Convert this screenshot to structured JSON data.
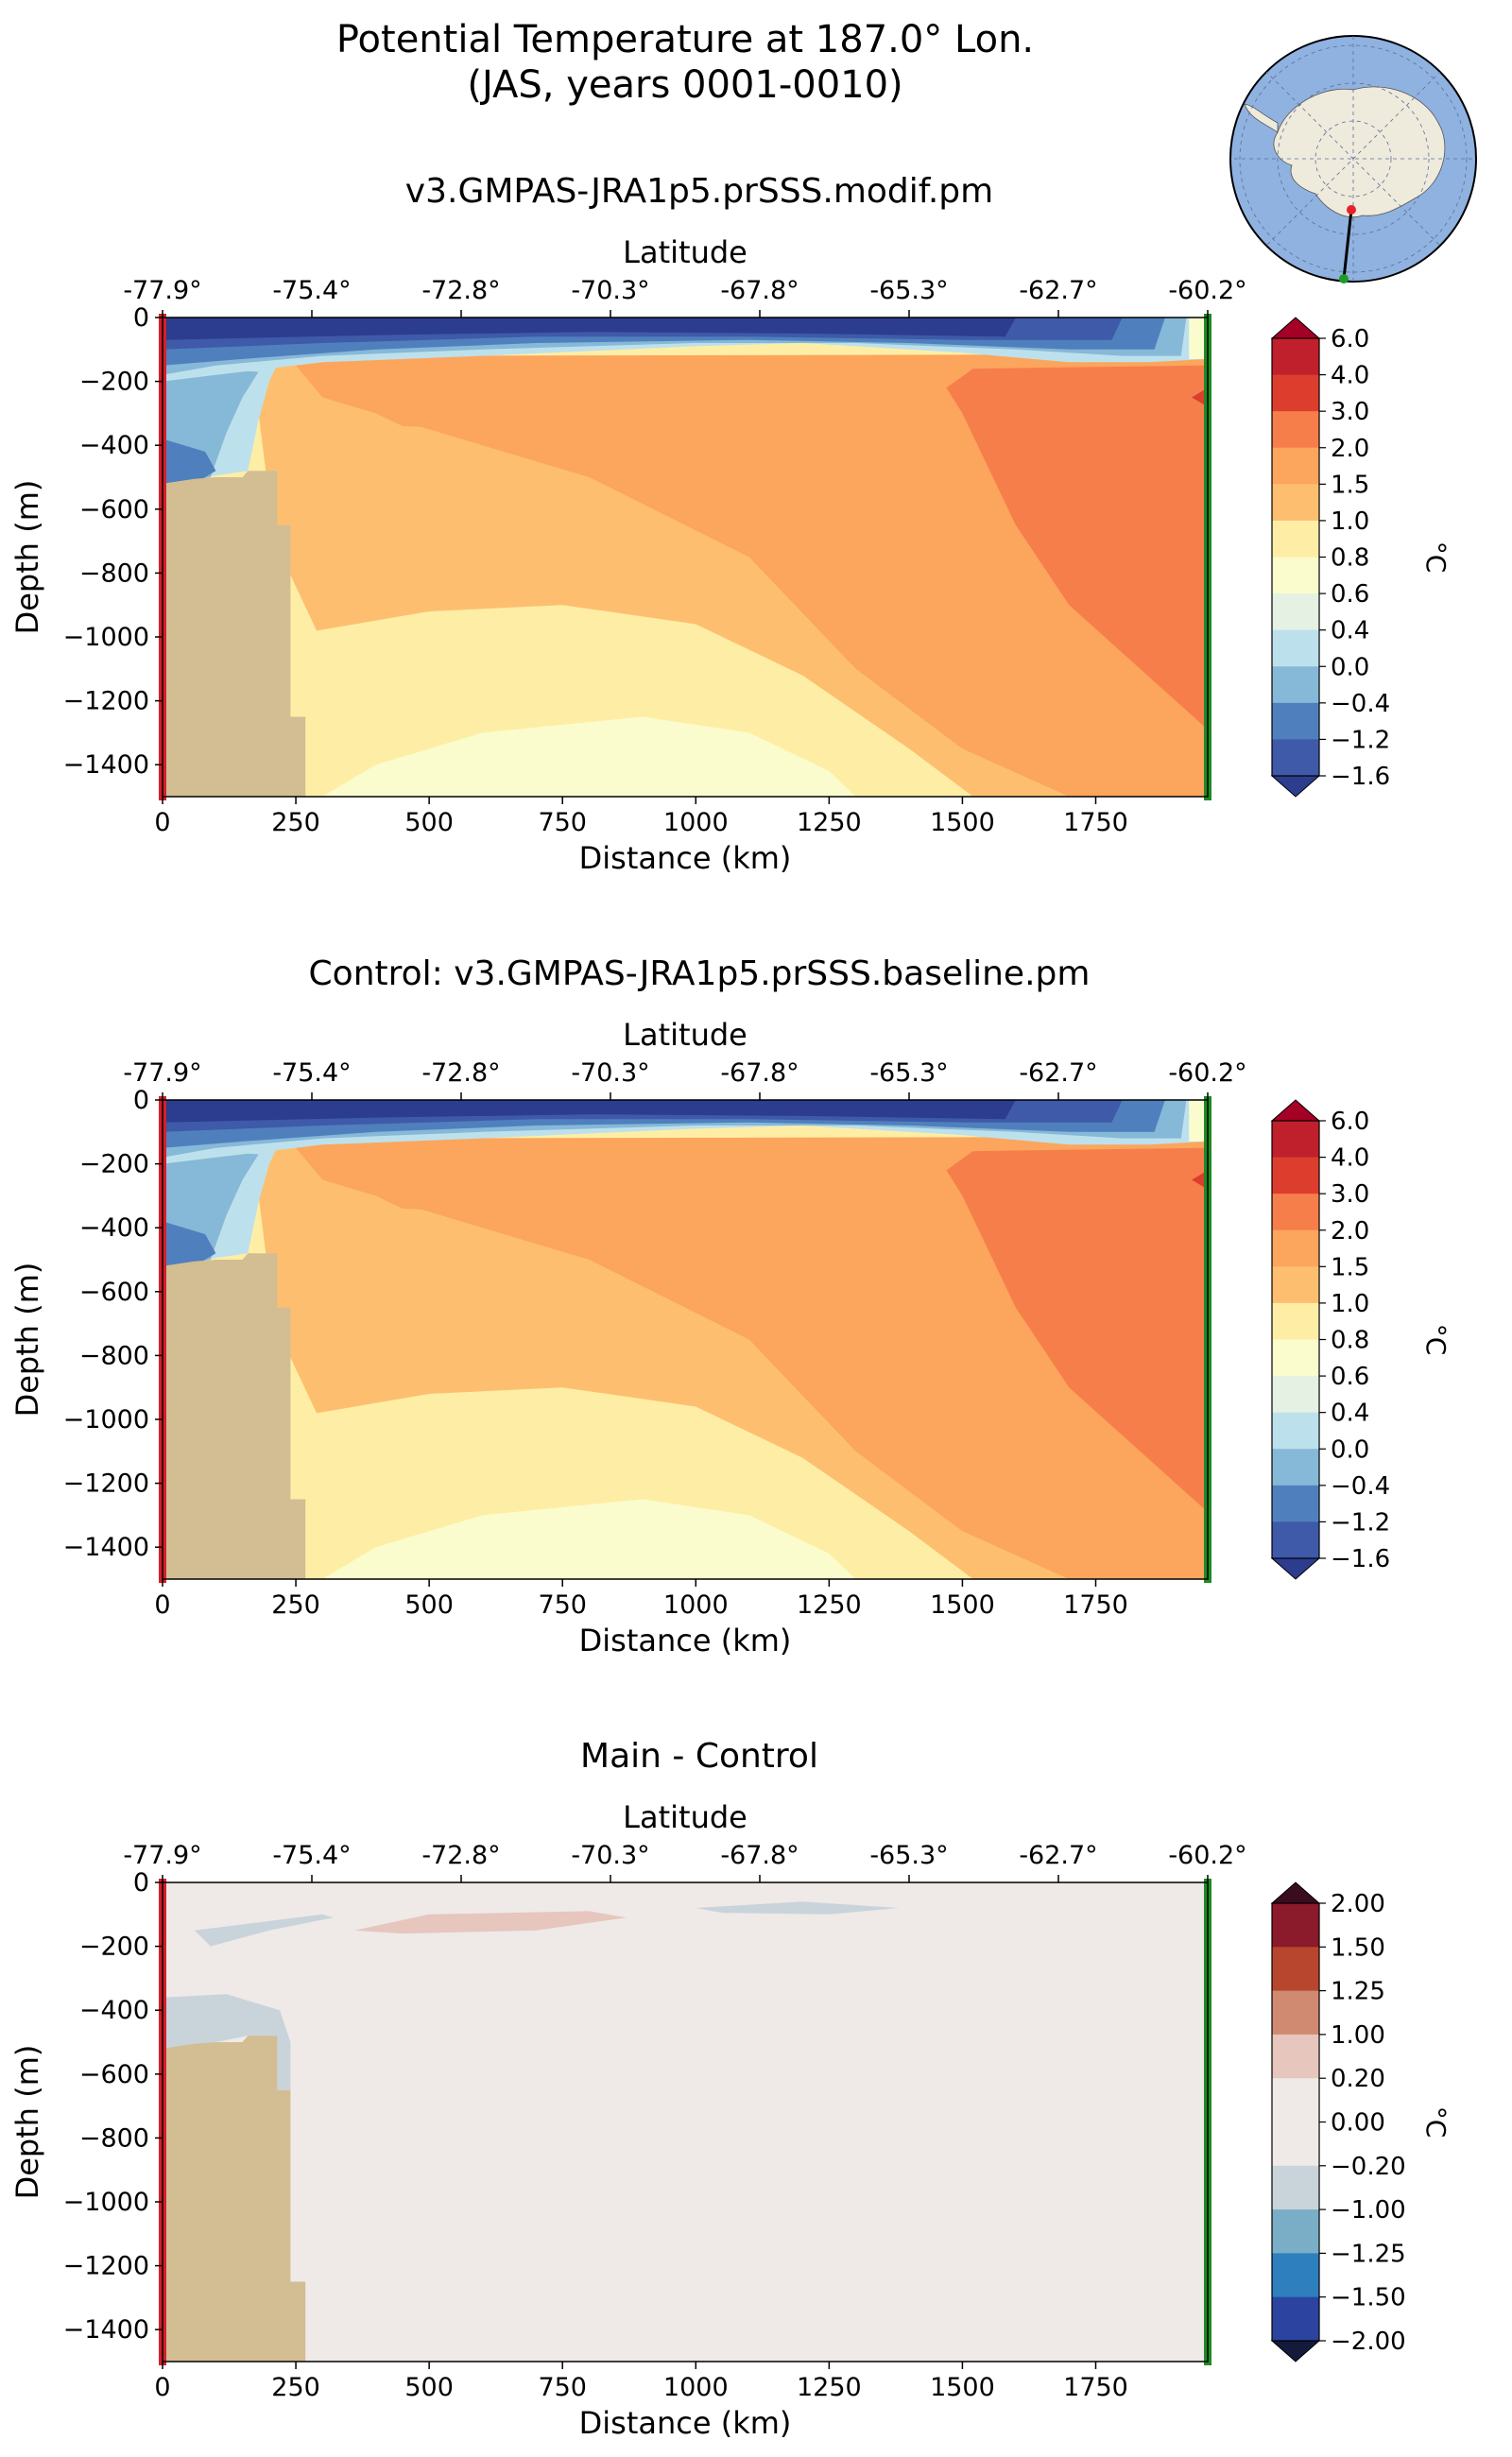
{
  "figure": {
    "title_line1": "Potential Temperature at 187.0° Lon.",
    "title_line2": "(JAS, years 0001-0010)"
  },
  "inset_map": {
    "description_icon": "antarctica-polar-map",
    "track_start_color": "#e8202a",
    "track_end_color": "#1f9a2a"
  },
  "chart_data": [
    {
      "type": "contourf",
      "title": "v3.GMPAS-JRA1p5.prSSS.modif.pm",
      "xlabel": "Distance (km)",
      "ylabel": "Depth (m)",
      "top_axis_label": "Latitude",
      "xlim": [
        0,
        1960
      ],
      "ylim": [
        -1500,
        0
      ],
      "xticks": [
        0,
        250,
        500,
        750,
        1000,
        1250,
        1500,
        1750
      ],
      "yticks": [
        0,
        -200,
        -400,
        -600,
        -800,
        -1000,
        -1200,
        -1400
      ],
      "ytick_labels": [
        "0",
        "−200",
        "−400",
        "−600",
        "−800",
        "−1000",
        "−1200",
        "−1400"
      ],
      "lat_ticks": [
        "-77.9°",
        "-75.4°",
        "-72.8°",
        "-70.3°",
        "-67.8°",
        "-65.3°",
        "-62.7°",
        "-60.2°"
      ],
      "colorbar": {
        "label": "°C",
        "levels": [
          "6.0",
          "4.0",
          "3.0",
          "2.0",
          "1.5",
          "1.0",
          "0.8",
          "0.6",
          "0.4",
          "0.0",
          "−0.4",
          "−1.2",
          "−1.6"
        ],
        "colors": [
          "#c0202b",
          "#dd3d2d",
          "#f67e4b",
          "#fca55d",
          "#fdbf6f",
          "#feeea5",
          "#fbfccd",
          "#e4f1e3",
          "#bde1ec",
          "#86b8d8",
          "#4f80bd",
          "#3e5aa8"
        ],
        "over": "#a50026",
        "under": "#2c3c8e"
      },
      "bathymetry_km_depth": [
        [
          0,
          -520
        ],
        [
          20,
          -515
        ],
        [
          40,
          -510
        ],
        [
          60,
          -505
        ],
        [
          100,
          -500
        ],
        [
          140,
          -500
        ],
        [
          160,
          -490
        ],
        [
          175,
          -480
        ],
        [
          210,
          -480
        ],
        [
          210,
          -650
        ],
        [
          235,
          -650
        ],
        [
          235,
          -1250
        ],
        [
          265,
          -1250
        ],
        [
          265,
          -1500
        ]
      ]
    },
    {
      "type": "contourf",
      "title": "Control: v3.GMPAS-JRA1p5.prSSS.baseline.pm",
      "xlabel": "Distance (km)",
      "ylabel": "Depth (m)",
      "top_axis_label": "Latitude",
      "xlim": [
        0,
        1960
      ],
      "ylim": [
        -1500,
        0
      ],
      "xticks": [
        0,
        250,
        500,
        750,
        1000,
        1250,
        1500,
        1750
      ],
      "yticks": [
        0,
        -200,
        -400,
        -600,
        -800,
        -1000,
        -1200,
        -1400
      ],
      "ytick_labels": [
        "0",
        "−200",
        "−400",
        "−600",
        "−800",
        "−1000",
        "−1200",
        "−1400"
      ],
      "lat_ticks": [
        "-77.9°",
        "-75.4°",
        "-72.8°",
        "-70.3°",
        "-67.8°",
        "-65.3°",
        "-62.7°",
        "-60.2°"
      ],
      "colorbar": {
        "label": "°C",
        "levels": [
          "6.0",
          "4.0",
          "3.0",
          "2.0",
          "1.5",
          "1.0",
          "0.8",
          "0.6",
          "0.4",
          "0.0",
          "−0.4",
          "−1.2",
          "−1.6"
        ],
        "colors": [
          "#c0202b",
          "#dd3d2d",
          "#f67e4b",
          "#fca55d",
          "#fdbf6f",
          "#feeea5",
          "#fbfccd",
          "#e4f1e3",
          "#bde1ec",
          "#86b8d8",
          "#4f80bd",
          "#3e5aa8"
        ],
        "over": "#a50026",
        "under": "#2c3c8e"
      }
    },
    {
      "type": "contourf",
      "title": "Main - Control",
      "xlabel": "Distance (km)",
      "ylabel": "Depth (m)",
      "top_axis_label": "Latitude",
      "xlim": [
        0,
        1960
      ],
      "ylim": [
        -1500,
        0
      ],
      "xticks": [
        0,
        250,
        500,
        750,
        1000,
        1250,
        1500,
        1750
      ],
      "yticks": [
        0,
        -200,
        -400,
        -600,
        -800,
        -1000,
        -1200,
        -1400
      ],
      "ytick_labels": [
        "0",
        "−200",
        "−400",
        "−600",
        "−800",
        "−1000",
        "−1200",
        "−1400"
      ],
      "lat_ticks": [
        "-77.9°",
        "-75.4°",
        "-72.8°",
        "-70.3°",
        "-67.8°",
        "-65.3°",
        "-62.7°",
        "-60.2°"
      ],
      "colorbar": {
        "label": "°C",
        "levels": [
          "2.00",
          "1.50",
          "1.25",
          "1.00",
          "0.20",
          "0.00",
          "−0.20",
          "−1.00",
          "−1.25",
          "−1.50",
          "−2.00"
        ],
        "colors": [
          "#8b1a2b",
          "#b8462f",
          "#d08a72",
          "#e6c6bd",
          "#efe9e8",
          "#efe9e8",
          "#c8d4da",
          "#7aaec6",
          "#2e7fbd",
          "#2c44a0"
        ],
        "over": "#3a0d1e",
        "under": "#131a3a"
      }
    }
  ]
}
